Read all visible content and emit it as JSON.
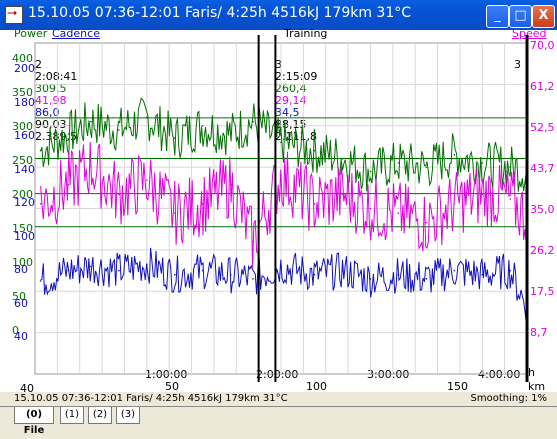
{
  "window": {
    "title": "15.10.05 07:36-12:01 Faris/ 4:25h 4516kJ 179km 31°C",
    "minimize_glyph": "_",
    "maximize_glyph": "□",
    "close_glyph": "X"
  },
  "chart_header": {
    "power_label": "Power",
    "cadence_label": "Cadence",
    "center_label": "Training",
    "speed_label": "Speed"
  },
  "colors": {
    "power": "#007000",
    "cadence": "#1010c0",
    "hr": "#e000e0",
    "speed": "#e000e0"
  },
  "axes": {
    "power_ticks": [
      "400",
      "350",
      "300",
      "250",
      "200",
      "150",
      "100",
      "50",
      "0"
    ],
    "cadence_ticks": [
      "200",
      "180",
      "160",
      "140",
      "120",
      "100",
      "80",
      "60",
      "40"
    ],
    "speed_ticks": [
      "70,0",
      "61,2",
      "52,5",
      "43,7",
      "35,0",
      "26,2",
      "17,5",
      "8,7"
    ],
    "time_ticks": [
      "1:00:00",
      "2:00:00",
      "3:00:00",
      "4:00:00"
    ],
    "km_ticks": [
      "50",
      "100",
      "150"
    ],
    "km_unit": "km",
    "h_unit": "h",
    "x_start": "40"
  },
  "markers": [
    {
      "label": "2",
      "time": "2:08:41",
      "power": "309,5",
      "hr": "41,98",
      "cadence": "86,0",
      "speed": "90,03",
      "distance": "2.389,5"
    },
    {
      "label": "3",
      "time": "2:15:09",
      "power": "260,4",
      "hr": "29,14",
      "cadence": "34,5",
      "speed": "88,15",
      "distance": "2.111,8"
    }
  ],
  "marker_right": "3",
  "status": {
    "left": "15.10.05 07:36-12:01 Faris/ 4:25h 4516kJ 179km 31°C",
    "right": "Smoothing: 1%"
  },
  "tabs": [
    "(0) File",
    "(1)",
    "(2)",
    "(3)"
  ],
  "chart_data": {
    "type": "line",
    "xlabel": "h",
    "ylabels": [
      "Power",
      "Cadence",
      "Speed"
    ],
    "x_range_h": [
      0,
      4.4
    ],
    "series": [
      {
        "name": "Power",
        "axis": "power",
        "ylim": [
          0,
          400
        ],
        "x": [
          0.05,
          0.3,
          0.5,
          0.75,
          1.0,
          1.25,
          1.5,
          1.75,
          1.95,
          2.2,
          2.5,
          2.75,
          3.0,
          3.25,
          3.5,
          3.75,
          4.0,
          4.25,
          4.4
        ],
        "values": [
          270,
          290,
          305,
          295,
          310,
          285,
          300,
          290,
          305,
          280,
          270,
          260,
          245,
          255,
          250,
          265,
          255,
          250,
          245
        ]
      },
      {
        "name": "Cadence",
        "axis": "cadence",
        "ylim": [
          40,
          200
        ],
        "x": [
          0.05,
          0.3,
          0.5,
          0.75,
          1.0,
          1.25,
          1.5,
          1.75,
          1.95,
          2.2,
          2.5,
          2.75,
          3.0,
          3.25,
          3.5,
          3.75,
          4.0,
          4.25,
          4.4
        ],
        "values": [
          85,
          90,
          92,
          90,
          93,
          88,
          90,
          88,
          86,
          92,
          88,
          90,
          86,
          88,
          86,
          90,
          88,
          90,
          72
        ]
      },
      {
        "name": "Speed",
        "axis": "speed",
        "ylim": [
          0,
          70
        ],
        "x": [
          0.05,
          0.3,
          0.5,
          0.75,
          1.0,
          1.25,
          1.5,
          1.75,
          1.95,
          2.2,
          2.5,
          2.75,
          3.0,
          3.25,
          3.5,
          3.75,
          4.0,
          4.25,
          4.4
        ],
        "values": [
          36,
          40,
          44,
          38,
          41,
          34,
          36,
          40,
          28,
          42,
          36,
          38,
          35,
          34,
          32,
          36,
          38,
          37,
          33
        ]
      }
    ]
  }
}
